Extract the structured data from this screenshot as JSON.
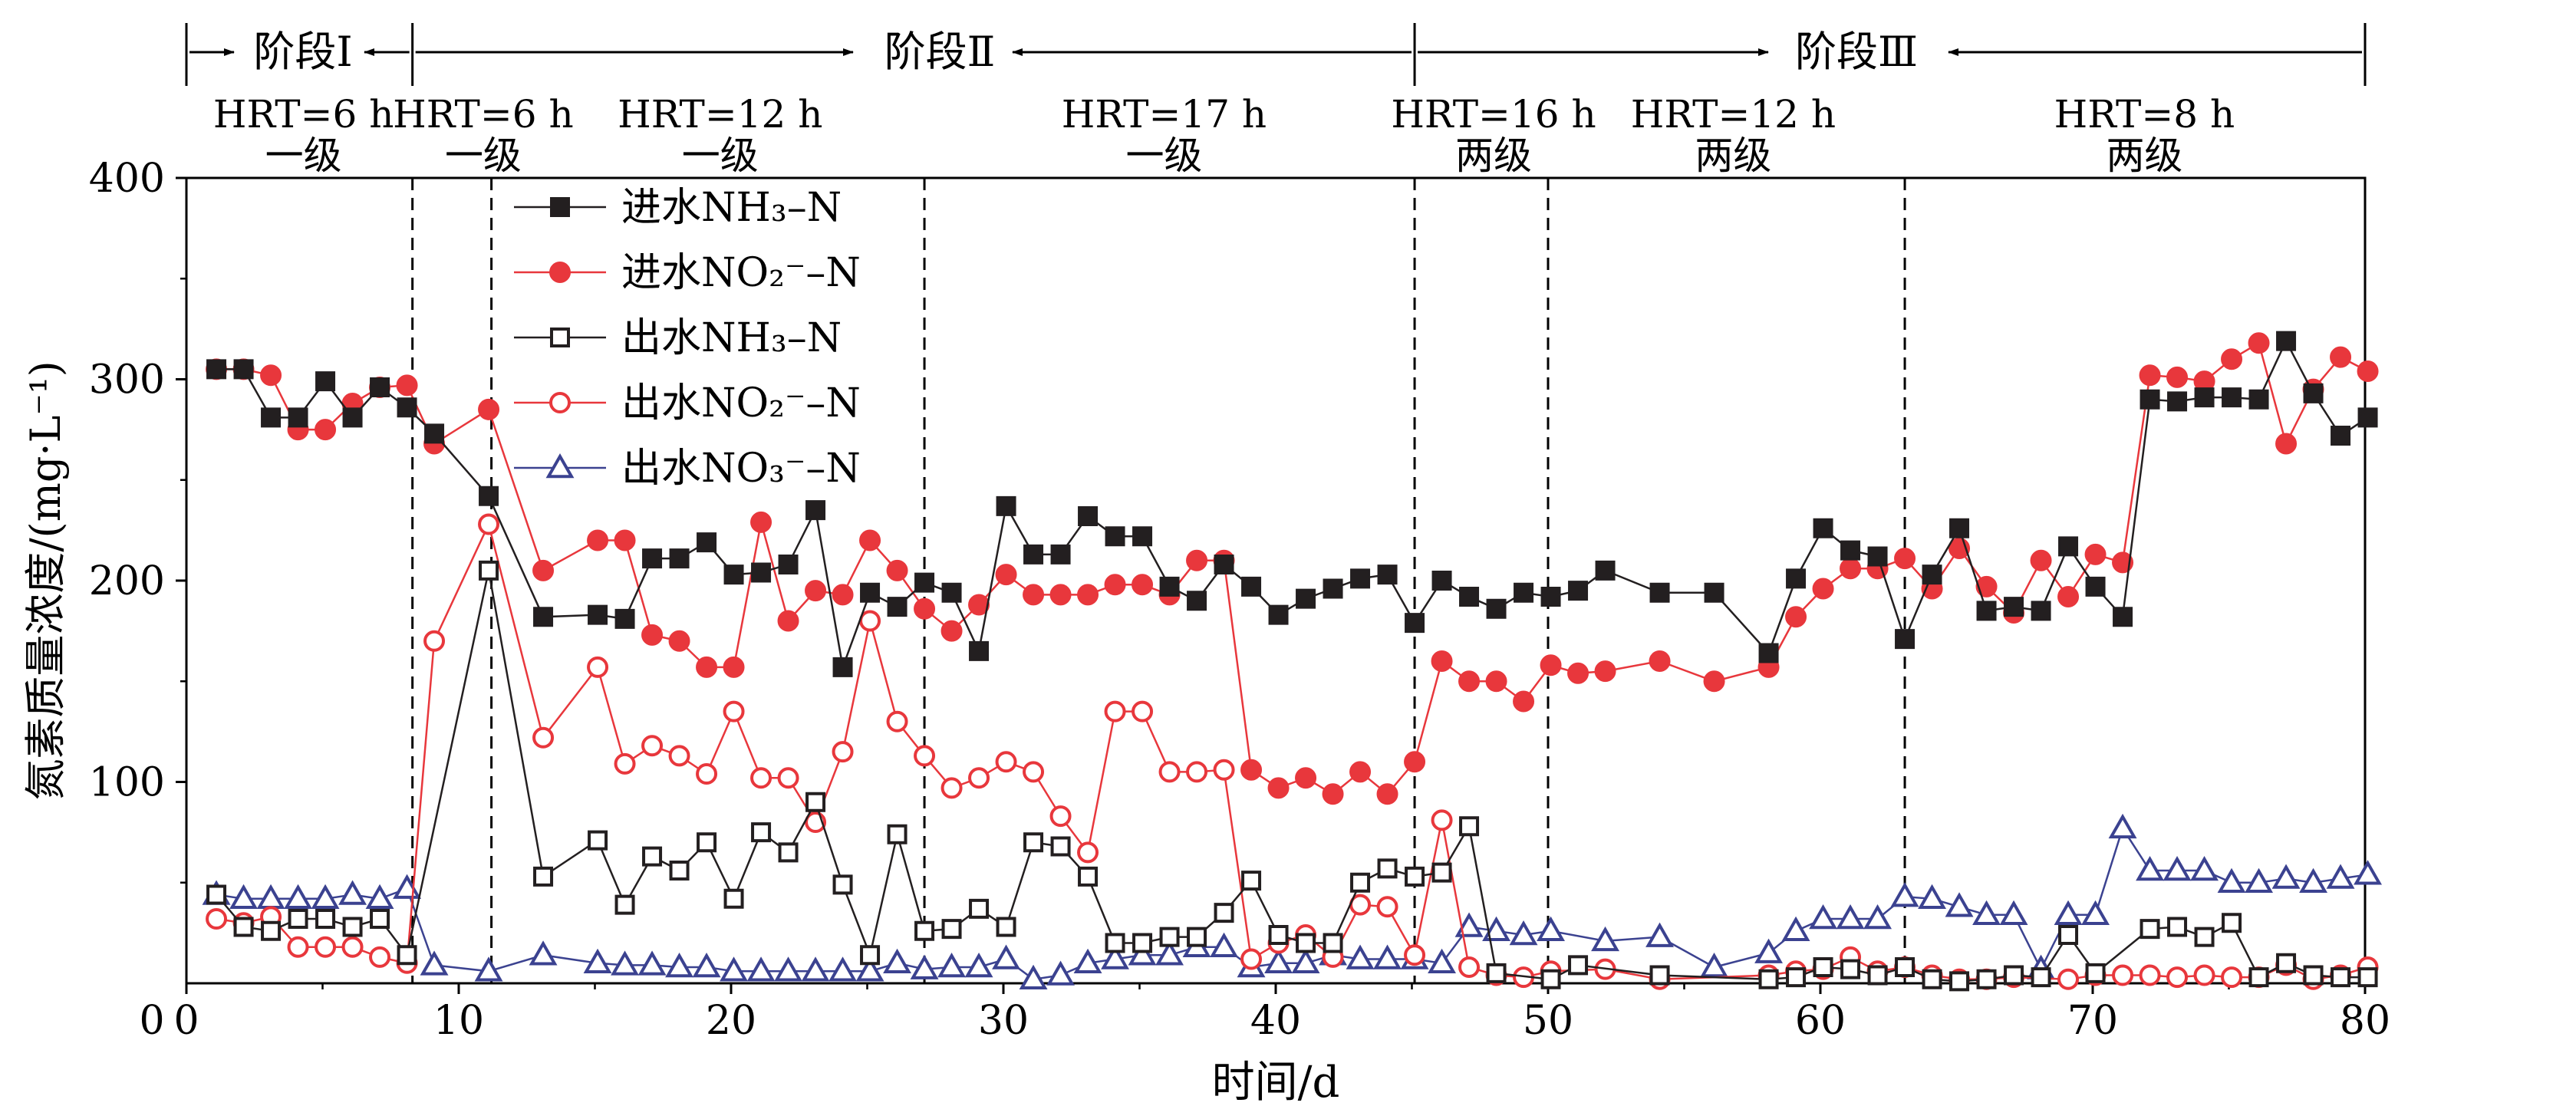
{
  "chart_data": {
    "type": "line",
    "xlabel": "时间/d",
    "ylabel": "氮素质量浓度/(mg·L⁻¹)",
    "xlim": [
      0,
      80
    ],
    "ylim": [
      0,
      400
    ],
    "x_ticks": [
      "0",
      "10",
      "20",
      "30",
      "40",
      "50",
      "60",
      "70",
      "80"
    ],
    "y_ticks": [
      "0",
      "100",
      "200",
      "300",
      "400"
    ],
    "grid": false,
    "legend_position": "upper-left",
    "stages": [
      {
        "label": "阶段Ⅰ",
        "start": 0,
        "end": 8.3
      },
      {
        "label": "阶段Ⅱ",
        "start": 8.3,
        "end": 45.1
      },
      {
        "label": "阶段Ⅲ",
        "start": 45.1,
        "end": 80
      }
    ],
    "dividers": [
      8.3,
      11.2,
      27.1,
      45.1,
      50.0,
      63.1,
      80.0
    ],
    "periods": [
      {
        "hrt": "HRT=6 h",
        "level": "一级",
        "center": 4.3
      },
      {
        "hrt": "HRT=6 h",
        "level": "一级",
        "center": 10.9
      },
      {
        "hrt": "HRT=12 h",
        "level": "一级",
        "center": 19.6
      },
      {
        "hrt": "HRT=17 h",
        "level": "一级",
        "center": 35.9
      },
      {
        "hrt": "HRT=16 h",
        "level": "两级",
        "center": 48.0
      },
      {
        "hrt": "HRT=12 h",
        "level": "两级",
        "center": 56.8
      },
      {
        "hrt": "HRT=8 h",
        "level": "两级",
        "center": 71.9
      }
    ],
    "series": [
      {
        "name": "进水NH₃–N",
        "color": "#231f20",
        "marker": "square-filled",
        "x": [
          1.1,
          2.1,
          3.1,
          4.1,
          5.1,
          6.1,
          7.1,
          8.1,
          9.1,
          11.1,
          13.1,
          15.1,
          16.1,
          17.1,
          18.1,
          19.1,
          20.1,
          21.1,
          22.1,
          23.1,
          24.1,
          25.1,
          26.1,
          27.1,
          28.1,
          29.1,
          30.1,
          31.1,
          32.1,
          33.1,
          34.1,
          35.1,
          36.1,
          37.1,
          38.1,
          39.1,
          40.1,
          41.1,
          42.1,
          43.1,
          44.1,
          45.1,
          46.1,
          47.1,
          48.1,
          49.1,
          50.1,
          51.1,
          52.1,
          54.1,
          56.1,
          58.1,
          59.1,
          60.1,
          61.1,
          62.1,
          63.1,
          64.1,
          65.1,
          66.1,
          67.1,
          68.1,
          69.1,
          70.1,
          71.1,
          72.1,
          73.1,
          74.1,
          75.1,
          76.1,
          77.1,
          78.1,
          79.1,
          80.1
        ],
        "y": [
          305,
          305,
          281,
          281,
          299,
          281,
          296,
          286,
          273,
          242,
          182,
          183,
          181,
          211,
          211,
          219,
          203,
          204,
          208,
          235,
          157,
          194,
          187,
          199,
          194,
          165,
          237,
          213,
          213,
          232,
          222,
          222,
          197,
          190,
          208,
          197,
          183,
          191,
          196,
          201,
          203,
          179,
          200,
          192,
          186,
          194,
          192,
          195,
          205,
          194,
          194,
          164,
          201,
          226,
          215,
          212,
          171,
          203,
          226,
          185,
          187,
          185,
          217,
          197,
          182,
          290,
          289,
          291,
          291,
          290,
          319,
          293,
          272,
          281
        ]
      },
      {
        "name": "进水NO₂⁻–N",
        "color": "#e8373c",
        "marker": "circle-filled",
        "x": [
          1.1,
          2.1,
          3.1,
          4.1,
          5.1,
          6.1,
          7.1,
          8.1,
          9.1,
          11.1,
          13.1,
          15.1,
          16.1,
          17.1,
          18.1,
          19.1,
          20.1,
          21.1,
          22.1,
          23.1,
          24.1,
          25.1,
          26.1,
          27.1,
          28.1,
          29.1,
          30.1,
          31.1,
          32.1,
          33.1,
          34.1,
          35.1,
          36.1,
          37.1,
          38.1,
          39.1,
          40.1,
          41.1,
          42.1,
          43.1,
          44.1,
          45.1,
          46.1,
          47.1,
          48.1,
          49.1,
          50.1,
          51.1,
          52.1,
          54.1,
          56.1,
          58.1,
          59.1,
          60.1,
          61.1,
          62.1,
          63.1,
          64.1,
          65.1,
          66.1,
          67.1,
          68.1,
          69.1,
          70.1,
          71.1,
          72.1,
          73.1,
          74.1,
          75.1,
          76.1,
          77.1,
          78.1,
          79.1,
          80.1
        ],
        "y": [
          305,
          305,
          302,
          275,
          275,
          288,
          296,
          297,
          268,
          285,
          205,
          220,
          220,
          173,
          170,
          157,
          157,
          229,
          180,
          195,
          193,
          220,
          205,
          186,
          175,
          188,
          203,
          193,
          193,
          193,
          198,
          198,
          193,
          210,
          210,
          106,
          97,
          102,
          94,
          105,
          94,
          110,
          160,
          150,
          150,
          140,
          158,
          154,
          155,
          160,
          150,
          157,
          182,
          196,
          206,
          206,
          211,
          196,
          216,
          197,
          184,
          210,
          192,
          213,
          209,
          302,
          301,
          299,
          310,
          318,
          268,
          295,
          311,
          304
        ]
      },
      {
        "name": "出水NH₃–N",
        "color": "#231f20",
        "marker": "square-open",
        "x": [
          1.1,
          2.1,
          3.1,
          4.1,
          5.1,
          6.1,
          7.1,
          8.1,
          11.1,
          13.1,
          15.1,
          16.1,
          17.1,
          18.1,
          19.1,
          20.1,
          21.1,
          22.1,
          23.1,
          24.1,
          25.1,
          26.1,
          27.1,
          28.1,
          29.1,
          30.1,
          31.1,
          32.1,
          33.1,
          34.1,
          35.1,
          36.1,
          37.1,
          38.1,
          39.1,
          40.1,
          41.1,
          42.1,
          43.1,
          44.1,
          45.1,
          46.1,
          47.1,
          48.1,
          50.1,
          51.1,
          54.1,
          58.1,
          59.1,
          60.1,
          61.1,
          62.1,
          63.1,
          64.1,
          65.1,
          66.1,
          67.1,
          68.1,
          69.1,
          70.1,
          72.1,
          73.1,
          74.1,
          75.1,
          76.1,
          77.1,
          78.1,
          79.1,
          80.1
        ],
        "y": [
          44,
          28,
          26,
          32,
          32,
          28,
          32,
          14,
          205,
          53,
          71,
          39,
          63,
          56,
          70,
          42,
          75,
          65,
          90,
          49,
          14,
          74,
          26,
          27,
          37,
          28,
          70,
          68,
          53,
          20,
          20,
          23,
          23,
          35,
          51,
          24,
          20,
          20,
          50,
          57,
          53,
          55,
          78,
          5,
          2,
          9,
          4,
          2,
          3,
          8,
          7,
          4,
          8,
          2,
          1,
          2,
          4,
          3,
          24,
          5,
          27,
          28,
          23,
          30,
          3,
          10,
          4,
          3,
          3
        ]
      },
      {
        "name": "出水NO₂⁻–N",
        "color": "#e8373c",
        "marker": "circle-open",
        "x": [
          1.1,
          2.1,
          3.1,
          4.1,
          5.1,
          6.1,
          7.1,
          8.1,
          9.1,
          11.1,
          13.1,
          15.1,
          16.1,
          17.1,
          18.1,
          19.1,
          20.1,
          21.1,
          22.1,
          23.1,
          24.1,
          25.1,
          26.1,
          27.1,
          28.1,
          29.1,
          30.1,
          31.1,
          32.1,
          33.1,
          34.1,
          35.1,
          36.1,
          37.1,
          38.1,
          39.1,
          40.1,
          41.1,
          42.1,
          43.1,
          44.1,
          45.1,
          46.1,
          47.1,
          48.1,
          49.1,
          50.1,
          52.1,
          54.1,
          58.1,
          59.1,
          60.1,
          61.1,
          62.1,
          63.1,
          64.1,
          65.1,
          66.1,
          67.1,
          69.1,
          70.1,
          71.1,
          72.1,
          73.1,
          74.1,
          75.1,
          76.1,
          77.1,
          78.1,
          79.1,
          80.1
        ],
        "y": [
          32,
          30,
          33,
          18,
          18,
          18,
          13,
          10,
          170,
          228,
          122,
          157,
          109,
          118,
          113,
          104,
          135,
          102,
          102,
          80,
          115,
          180,
          130,
          113,
          97,
          102,
          110,
          105,
          83,
          65,
          135,
          135,
          105,
          105,
          106,
          12,
          20,
          24,
          13,
          39,
          38,
          14,
          81,
          8,
          4,
          3,
          6,
          7,
          2,
          4,
          6,
          7,
          13,
          6,
          8,
          4,
          2,
          2,
          3,
          2,
          4,
          4,
          4,
          3,
          4,
          3,
          3,
          9,
          2,
          4,
          8
        ]
      },
      {
        "name": "出水NO₃⁻–N",
        "color": "#3b4290",
        "marker": "triangle-open",
        "x": [
          1.1,
          2.1,
          3.1,
          4.1,
          5.1,
          6.1,
          7.1,
          8.1,
          9.1,
          11.1,
          13.1,
          15.1,
          16.1,
          17.1,
          18.1,
          19.1,
          20.1,
          21.1,
          22.1,
          23.1,
          24.1,
          25.1,
          26.1,
          27.1,
          28.1,
          29.1,
          30.1,
          31.1,
          32.1,
          33.1,
          34.1,
          35.1,
          36.1,
          37.1,
          38.1,
          39.1,
          40.1,
          41.1,
          42.1,
          43.1,
          44.1,
          45.1,
          46.1,
          47.1,
          48.1,
          49.1,
          50.1,
          52.1,
          54.1,
          56.1,
          58.1,
          59.1,
          60.1,
          61.1,
          62.1,
          63.1,
          64.1,
          65.1,
          66.1,
          67.1,
          68.1,
          69.1,
          70.1,
          71.1,
          72.1,
          73.1,
          74.1,
          75.1,
          76.1,
          77.1,
          78.1,
          79.1,
          80.1
        ],
        "y": [
          44,
          42,
          42,
          42,
          42,
          44,
          42,
          47,
          9,
          6,
          14,
          10,
          9,
          9,
          8,
          8,
          6,
          6,
          6,
          6,
          6,
          6,
          10,
          7,
          8,
          8,
          12,
          2,
          4,
          10,
          12,
          14,
          14,
          18,
          18,
          8,
          10,
          10,
          14,
          12,
          12,
          12,
          10,
          28,
          26,
          24,
          26,
          21,
          23,
          8,
          15,
          26,
          32,
          32,
          32,
          43,
          42,
          38,
          34,
          34,
          7,
          34,
          34,
          77,
          56,
          56,
          56,
          50,
          50,
          52,
          50,
          52,
          54
        ]
      }
    ]
  }
}
